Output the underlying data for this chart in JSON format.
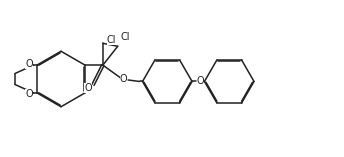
{
  "bg_color": "#ffffff",
  "line_color": "#222222",
  "lw": 1.1,
  "fs": 7.0,
  "fig_w": 3.44,
  "fig_h": 1.57,
  "dpi": 100,
  "xlim": [
    0,
    34.4
  ],
  "ylim": [
    0,
    15.7
  ]
}
